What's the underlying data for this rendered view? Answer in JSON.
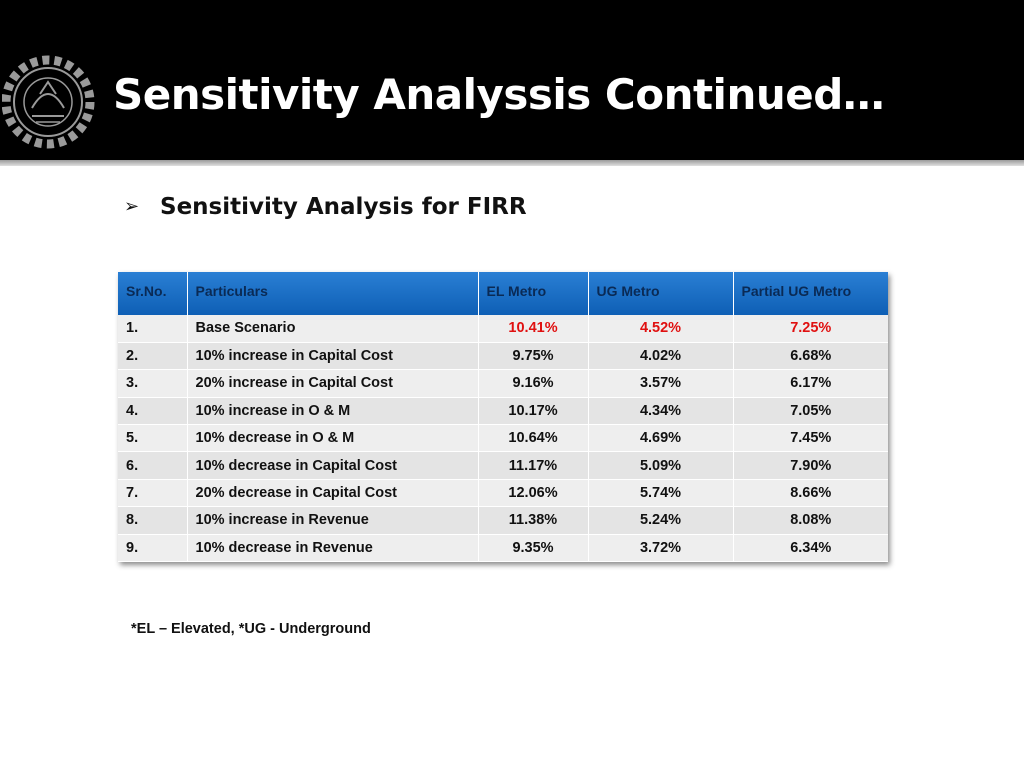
{
  "slide": {
    "title": "Sensitivity Analyssis Continued…",
    "subheading": "Sensitivity Analysis for FIRR",
    "bullet_glyph": "➢",
    "footnote": "*EL – Elevated, *UG - Underground"
  },
  "table": {
    "headers": [
      "Sr.No.",
      "Particulars",
      "EL Metro",
      "UG Metro",
      "Partial UG Metro"
    ],
    "rows": [
      [
        "1.",
        "Base Scenario",
        "10.41%",
        "4.52%",
        "7.25%"
      ],
      [
        "2.",
        "10% increase in Capital Cost",
        "9.75%",
        "4.02%",
        "6.68%"
      ],
      [
        "3.",
        "20% increase in Capital Cost",
        "9.16%",
        "3.57%",
        "6.17%"
      ],
      [
        "4.",
        "10% increase in O & M",
        "10.17%",
        "4.34%",
        "7.05%"
      ],
      [
        "5.",
        "10% decrease in O & M",
        "10.64%",
        "4.69%",
        "7.45%"
      ],
      [
        "6.",
        "10% decrease in Capital Cost",
        "11.17%",
        "5.09%",
        "7.90%"
      ],
      [
        "7.",
        "20% decrease in Capital Cost",
        "12.06%",
        "5.74%",
        "8.66%"
      ],
      [
        "8.",
        "10% increase in Revenue",
        "11.38%",
        "5.24%",
        "8.08%"
      ],
      [
        "9.",
        "10% decrease in Revenue",
        "9.35%",
        "3.72%",
        "6.34%"
      ]
    ]
  },
  "colors": {
    "header_bar": "#000000",
    "table_header": "#1a6fc4",
    "highlight_text": "#e01010"
  },
  "icons": {
    "logo": "institute-seal-logo"
  }
}
